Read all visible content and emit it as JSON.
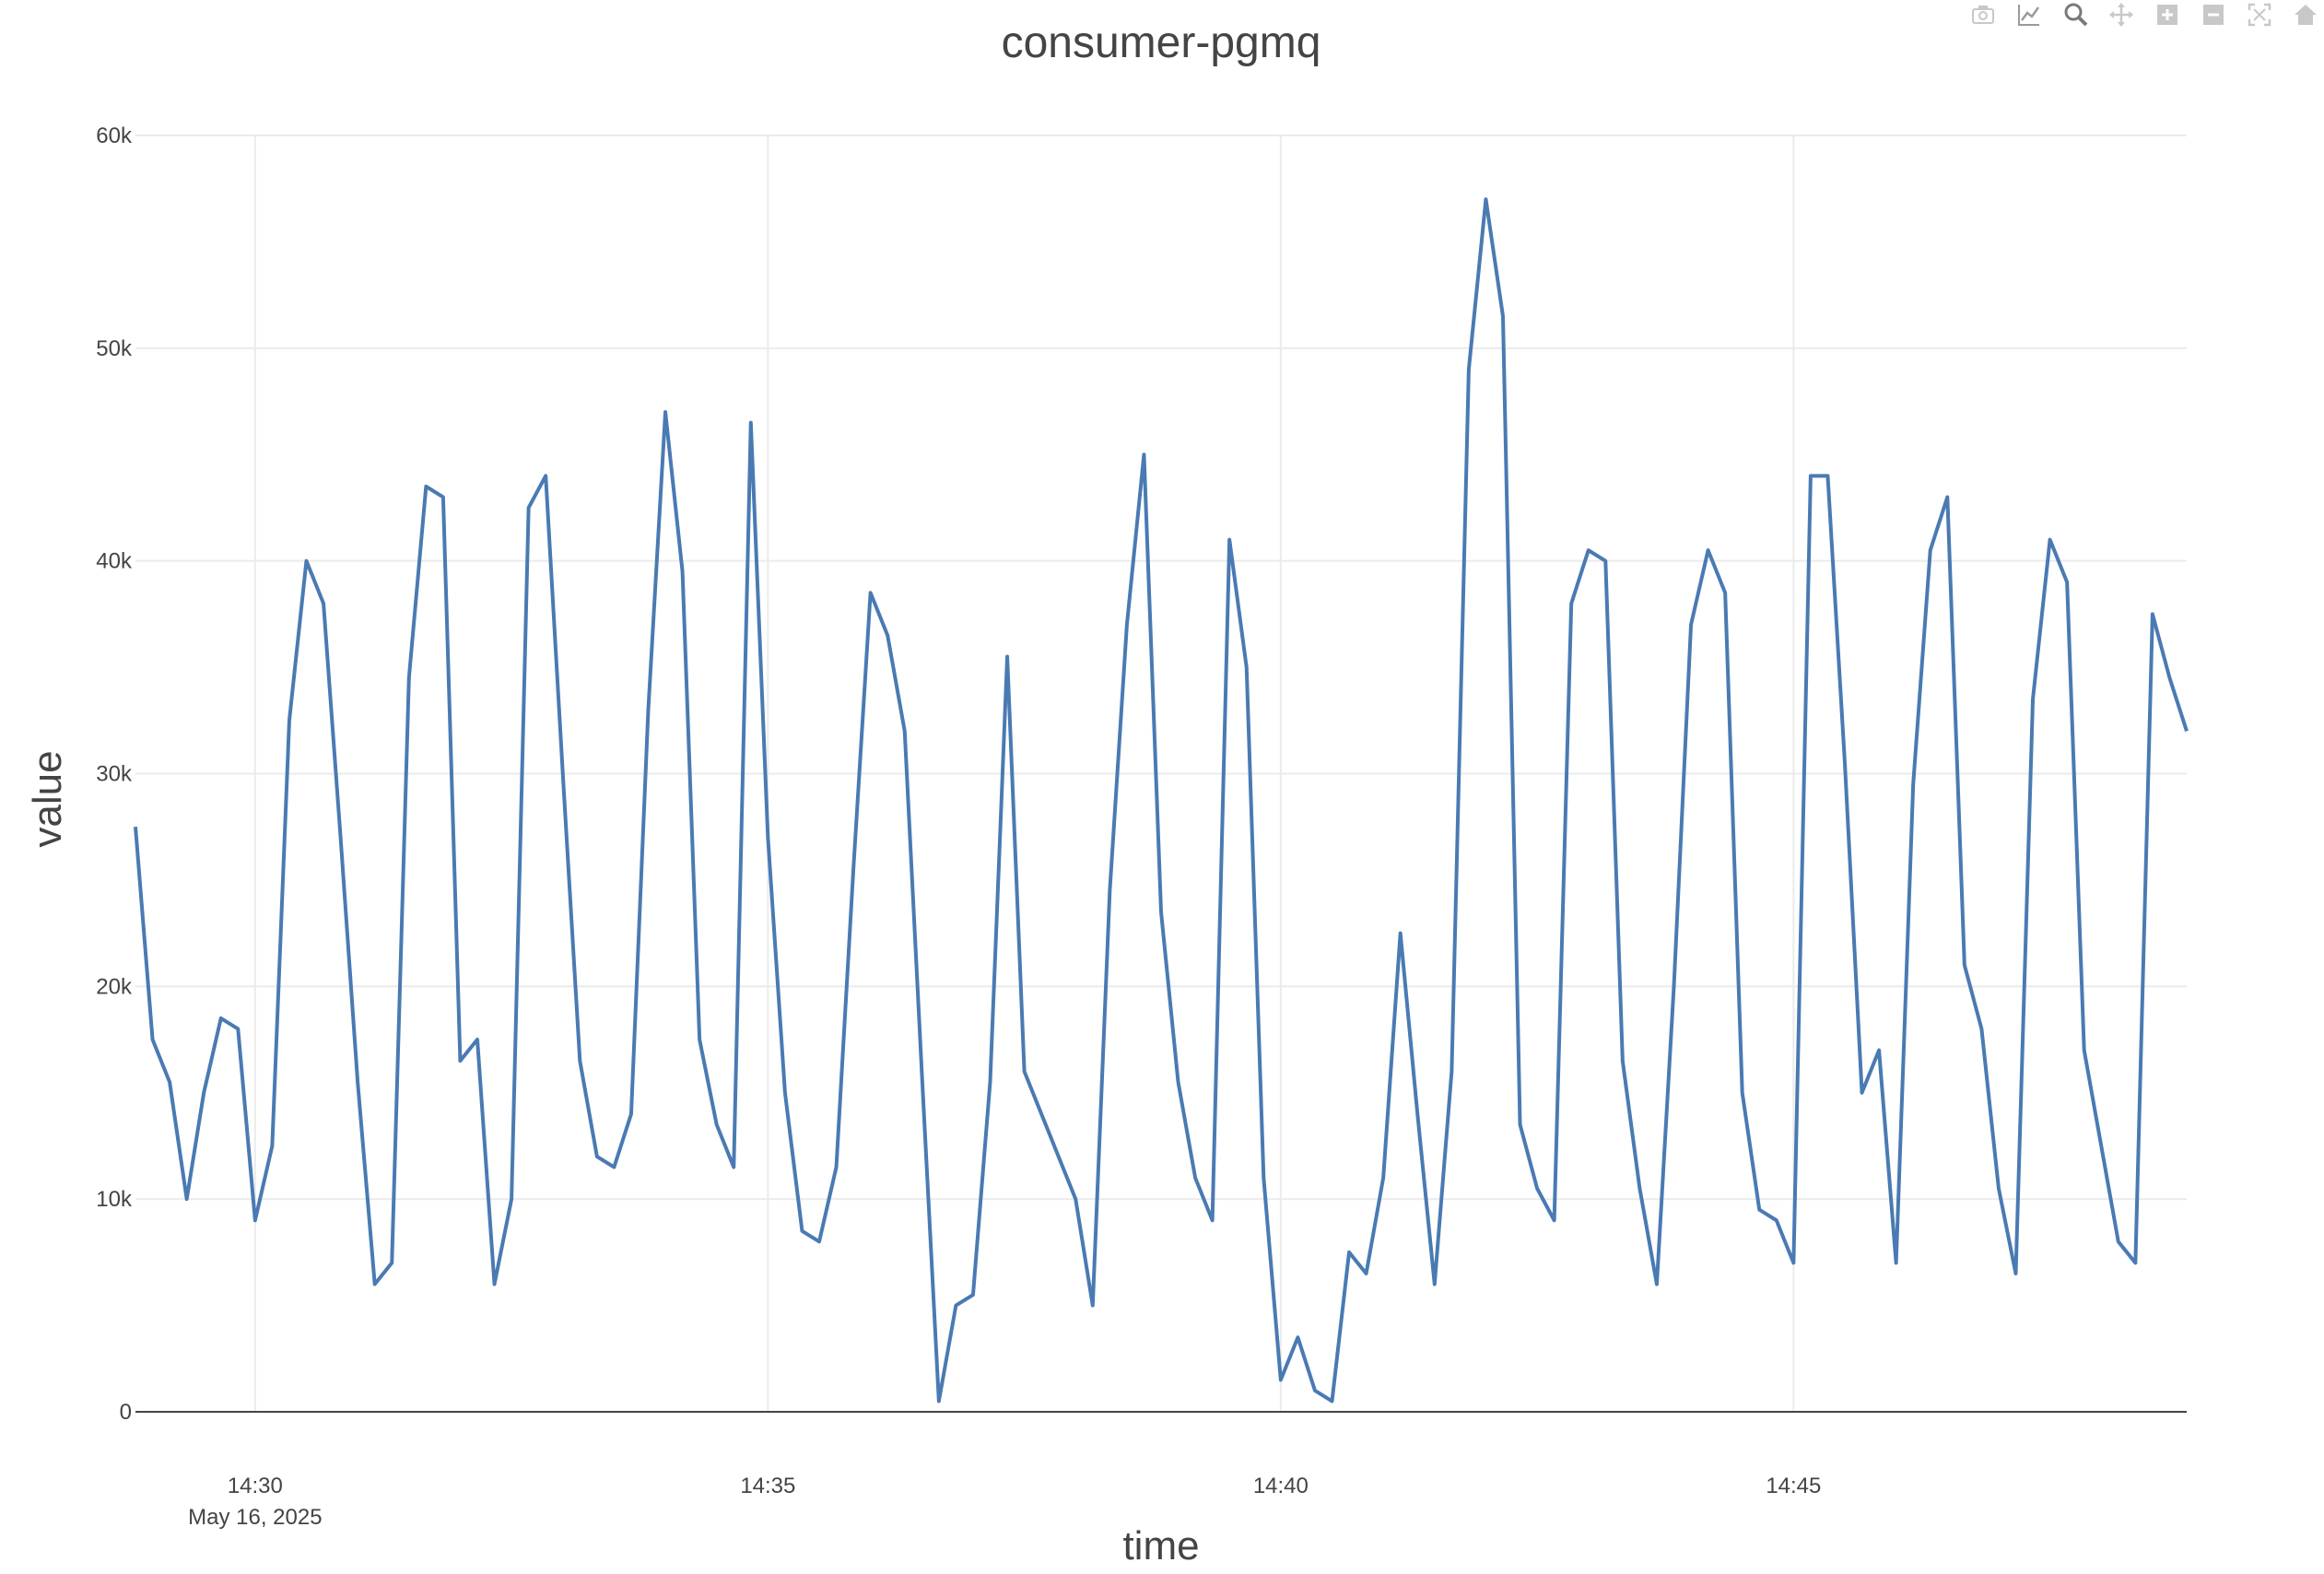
{
  "chart_data": {
    "type": "line",
    "title": "consumer-pgmq",
    "xlabel": "time",
    "ylabel": "value",
    "x_start": "2025-05-16 14:28:50",
    "x_step_seconds": 10,
    "x_range": [
      "2025-05-16 14:28:50",
      "2025-05-16 14:48:50"
    ],
    "ylim": [
      0,
      60000
    ],
    "y_ticks": [
      0,
      10000,
      20000,
      30000,
      40000,
      50000,
      60000
    ],
    "y_tick_labels": [
      "0",
      "10k",
      "20k",
      "30k",
      "40k",
      "50k",
      "60k"
    ],
    "x_ticks": [
      "2025-05-16 14:30:00",
      "2025-05-16 14:35:00",
      "2025-05-16 14:40:00",
      "2025-05-16 14:45:00"
    ],
    "x_tick_labels": [
      "14:30",
      "14:35",
      "14:40",
      "14:45"
    ],
    "x_tick_sublabel": "May 16, 2025",
    "grid": true,
    "series": [
      {
        "color": "#4a7ab3",
        "values": [
          27500,
          17500,
          15500,
          10000,
          15000,
          18500,
          18000,
          9000,
          12500,
          32500,
          40000,
          38000,
          27000,
          15500,
          6000,
          7000,
          34500,
          43500,
          43000,
          16500,
          17500,
          6000,
          10000,
          42500,
          44000,
          30000,
          16500,
          12000,
          11500,
          14000,
          33000,
          47000,
          39500,
          17500,
          13500,
          11500,
          46500,
          27000,
          15000,
          8500,
          8000,
          11500,
          25500,
          38500,
          36500,
          32000,
          16000,
          500,
          5000,
          5500,
          15500,
          35500,
          16000,
          14000,
          12000,
          10000,
          5000,
          24500,
          37000,
          45000,
          23500,
          15500,
          11000,
          9000,
          41000,
          35000,
          11000,
          1500,
          3500,
          1000,
          500,
          7500,
          6500,
          11000,
          22500,
          14000,
          6000,
          16000,
          49000,
          57000,
          51500,
          13500,
          10500,
          9000,
          38000,
          40500,
          40000,
          16500,
          10500,
          6000,
          20000,
          37000,
          40500,
          38500,
          15000,
          9500,
          9000,
          7000,
          44000,
          44000,
          30500,
          15000,
          17000,
          7000,
          29500,
          40500,
          43000,
          21000,
          18000,
          10500,
          6500,
          33500,
          41000,
          39000,
          17000,
          12500,
          8000,
          7000,
          37500,
          34500,
          32000
        ]
      }
    ]
  },
  "modebar": {
    "icons": [
      "camera-icon",
      "line-chart-icon",
      "zoom-icon",
      "pan-icon",
      "zoom-in-icon",
      "zoom-out-icon",
      "autoscale-icon",
      "home-icon"
    ]
  }
}
